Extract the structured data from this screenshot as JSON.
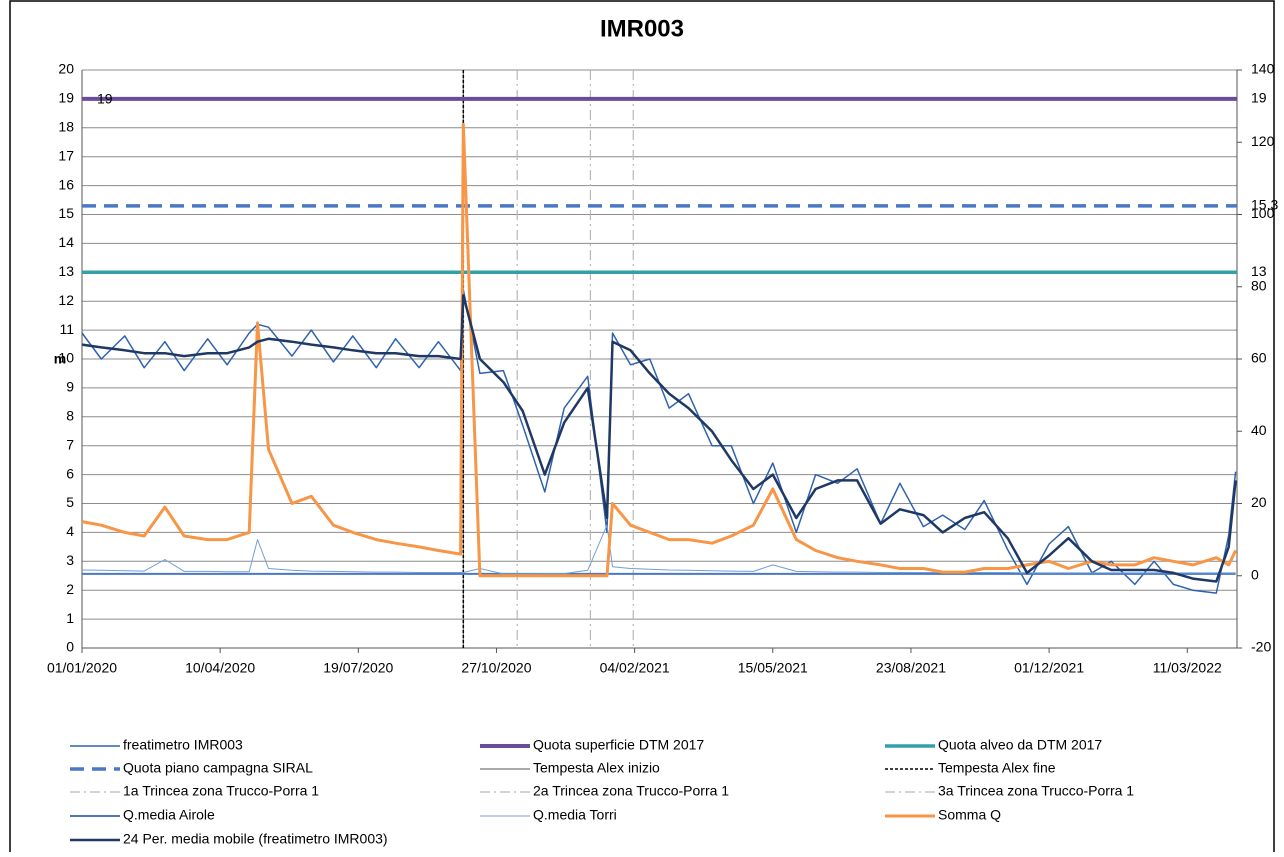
{
  "chart_data": {
    "type": "line",
    "title": "IMR003",
    "ylabel": "m",
    "x": [
      "01/01/2020",
      "15/01/2020",
      "01/02/2020",
      "15/02/2020",
      "01/03/2020",
      "15/03/2020",
      "01/04/2020",
      "15/04/2020",
      "01/05/2020",
      "07/05/2020",
      "15/05/2020",
      "01/06/2020",
      "15/06/2020",
      "01/07/2020",
      "15/07/2020",
      "01/08/2020",
      "15/08/2020",
      "01/09/2020",
      "15/09/2020",
      "01/10/2020",
      "03/10/2020",
      "15/10/2020",
      "01/11/2020",
      "15/11/2020",
      "01/12/2020",
      "15/12/2020",
      "01/01/2021",
      "15/01/2021",
      "19/01/2021",
      "01/02/2021",
      "15/02/2021",
      "01/03/2021",
      "15/03/2021",
      "01/04/2021",
      "15/04/2021",
      "01/05/2021",
      "15/05/2021",
      "01/06/2021",
      "15/06/2021",
      "01/07/2021",
      "15/07/2021",
      "01/08/2021",
      "15/08/2021",
      "01/09/2021",
      "15/09/2021",
      "01/10/2021",
      "15/10/2021",
      "01/11/2021",
      "15/11/2021",
      "01/12/2021",
      "15/12/2021",
      "01/01/2022",
      "15/01/2022",
      "01/02/2022",
      "15/02/2022",
      "01/03/2022",
      "15/03/2022",
      "01/04/2022",
      "10/04/2022",
      "15/04/2022"
    ],
    "xlim": [
      "01/01/2020",
      "16/04/2022"
    ],
    "xticks": [
      "01/01/2020",
      "10/04/2020",
      "19/07/2020",
      "27/10/2020",
      "04/02/2021",
      "15/05/2021",
      "23/08/2021",
      "01/12/2021",
      "11/03/2022"
    ],
    "ylim": [
      0,
      20
    ],
    "yticks": [
      0,
      1,
      2,
      3,
      4,
      5,
      6,
      7,
      8,
      9,
      10,
      11,
      12,
      13,
      14,
      15,
      16,
      17,
      18,
      19,
      20
    ],
    "y2lim": [
      -20,
      140
    ],
    "y2ticks": [
      -20,
      0,
      20,
      40,
      60,
      80,
      100,
      120,
      140
    ],
    "grid": true,
    "series": [
      {
        "name": "freatimetro IMR003",
        "kind": "line",
        "color": "#2f62ad",
        "width": 1.5,
        "values": [
          10.9,
          10.0,
          10.8,
          9.7,
          10.6,
          9.6,
          10.7,
          9.8,
          10.9,
          11.2,
          11.1,
          10.1,
          11.0,
          9.9,
          10.8,
          9.7,
          10.7,
          9.7,
          10.6,
          9.6,
          12.4,
          9.5,
          9.6,
          7.7,
          5.4,
          8.3,
          9.4,
          4.0,
          10.9,
          9.8,
          10.0,
          8.3,
          8.8,
          7.0,
          7.0,
          5.0,
          6.4,
          4.0,
          6.0,
          5.7,
          6.2,
          4.3,
          5.7,
          4.2,
          4.6,
          4.1,
          5.1,
          3.4,
          2.2,
          3.6,
          4.2,
          2.6,
          3.0,
          2.2,
          3.0,
          2.2,
          2.0,
          1.9,
          3.9,
          6.1
        ]
      },
      {
        "name": "Quota superficie DTM 2017",
        "kind": "hline",
        "color": "#6b4c9a",
        "width": 4,
        "value": 19,
        "label_left": true
      },
      {
        "name": "Quota alveo da DTM 2017",
        "kind": "hline",
        "color": "#31a0a8",
        "width": 3.5,
        "value": 13
      },
      {
        "name": "Quota piano campagna SIRAL",
        "kind": "hline",
        "color": "#4a78c2",
        "width": 3.5,
        "dash": "14 8",
        "value": 15.3
      },
      {
        "name": "Tempesta Alex inizio",
        "kind": "vline",
        "color": "#555555",
        "width": 1,
        "x": "03/10/2020"
      },
      {
        "name": "Tempesta Alex fine",
        "kind": "vline",
        "color": "#000000",
        "width": 1.5,
        "dash": "3 2",
        "x": "03/10/2020"
      },
      {
        "name": "1a Trincea zona Trucco-Porra 1",
        "kind": "vline",
        "color": "#b8b8b8",
        "width": 1.2,
        "dash": "10 4 2 4",
        "x": "11/11/2020"
      },
      {
        "name": "2a Trincea zona Trucco-Porra 1",
        "kind": "vline",
        "color": "#b8b8b8",
        "width": 1.2,
        "dash": "10 4 2 4",
        "x": "03/01/2021"
      },
      {
        "name": "3a Trincea zona Trucco-Porra 1",
        "kind": "vline",
        "color": "#b8b8b8",
        "width": 1.2,
        "dash": "10 4 2 4",
        "x": "03/02/2021"
      },
      {
        "name": "Q.media Airole",
        "kind": "line",
        "color": "#4a78c2",
        "width": 2,
        "axis": "y2",
        "values": [
          0.5,
          0.5,
          0.5,
          0.5,
          0.5,
          0.5,
          0.5,
          0.5,
          0.5,
          0.5,
          0.5,
          0.5,
          0.5,
          0.5,
          0.5,
          0.5,
          0.5,
          0.5,
          0.5,
          0.5,
          0.5,
          0.5,
          0.5,
          0.5,
          0.5,
          0.5,
          0.5,
          0.5,
          0.5,
          0.5,
          0.5,
          0.5,
          0.5,
          0.5,
          0.5,
          0.5,
          0.5,
          0.5,
          0.5,
          0.5,
          0.5,
          0.5,
          0.5,
          0.5,
          0.5,
          0.5,
          0.5,
          0.5,
          0.5,
          0.5,
          0.5,
          0.5,
          0.5,
          0.5,
          0.5,
          0.5,
          0.5,
          0.5,
          0.5,
          0.5
        ]
      },
      {
        "name": "Q.media Torri",
        "kind": "line",
        "color": "#6f9fd8",
        "width": 1,
        "axis": "y2",
        "values": [
          1.6,
          1.5,
          1.4,
          1.3,
          4.5,
          1.2,
          1.2,
          1.1,
          1.1,
          10,
          2,
          1.5,
          1.3,
          1.2,
          1.1,
          1,
          1,
          0.9,
          0.9,
          0.9,
          0.9,
          2,
          0.5,
          0.5,
          0.6,
          0.6,
          1.5,
          14,
          2.5,
          2,
          1.8,
          1.6,
          1.5,
          1.4,
          1.3,
          1.2,
          3,
          1.2,
          1.1,
          1,
          1,
          0.9,
          0.9,
          0.9,
          0.9,
          0.9,
          0.9,
          0.9,
          0.8,
          0.8,
          0.8,
          0.8,
          0.8,
          0.8,
          0.8,
          0.8,
          0.8,
          0.8,
          0.8,
          0.8
        ]
      },
      {
        "name": "Somma Q",
        "kind": "line",
        "color": "#f79646",
        "width": 3,
        "axis": "y2",
        "values": [
          15,
          14,
          12,
          11,
          19,
          11,
          10,
          10,
          12,
          70,
          35,
          20,
          22,
          14,
          12,
          10,
          9,
          8,
          7,
          6,
          125,
          0,
          0,
          0,
          0,
          0,
          0,
          0,
          20,
          14,
          12,
          10,
          10,
          9,
          11,
          14,
          24,
          10,
          7,
          5,
          4,
          3,
          2,
          2,
          1,
          1,
          2,
          2,
          3,
          4,
          2,
          4,
          3,
          3,
          5,
          4,
          3,
          5,
          3,
          7
        ]
      },
      {
        "name": "24 Per. media mobile (freatimetro IMR003)",
        "kind": "line",
        "color": "#1f3864",
        "width": 2.5,
        "values": [
          10.5,
          10.4,
          10.3,
          10.2,
          10.2,
          10.1,
          10.2,
          10.2,
          10.4,
          10.6,
          10.7,
          10.6,
          10.5,
          10.4,
          10.3,
          10.2,
          10.2,
          10.1,
          10.1,
          10.0,
          12.2,
          10.0,
          9.2,
          8.2,
          6.0,
          7.8,
          9.0,
          4.5,
          10.6,
          10.3,
          9.5,
          8.8,
          8.3,
          7.5,
          6.5,
          5.5,
          6.0,
          4.5,
          5.5,
          5.8,
          5.8,
          4.3,
          4.8,
          4.6,
          4.0,
          4.5,
          4.7,
          3.8,
          2.6,
          3.2,
          3.8,
          3.0,
          2.7,
          2.7,
          2.7,
          2.6,
          2.4,
          2.3,
          3.5,
          5.8
        ]
      }
    ]
  }
}
